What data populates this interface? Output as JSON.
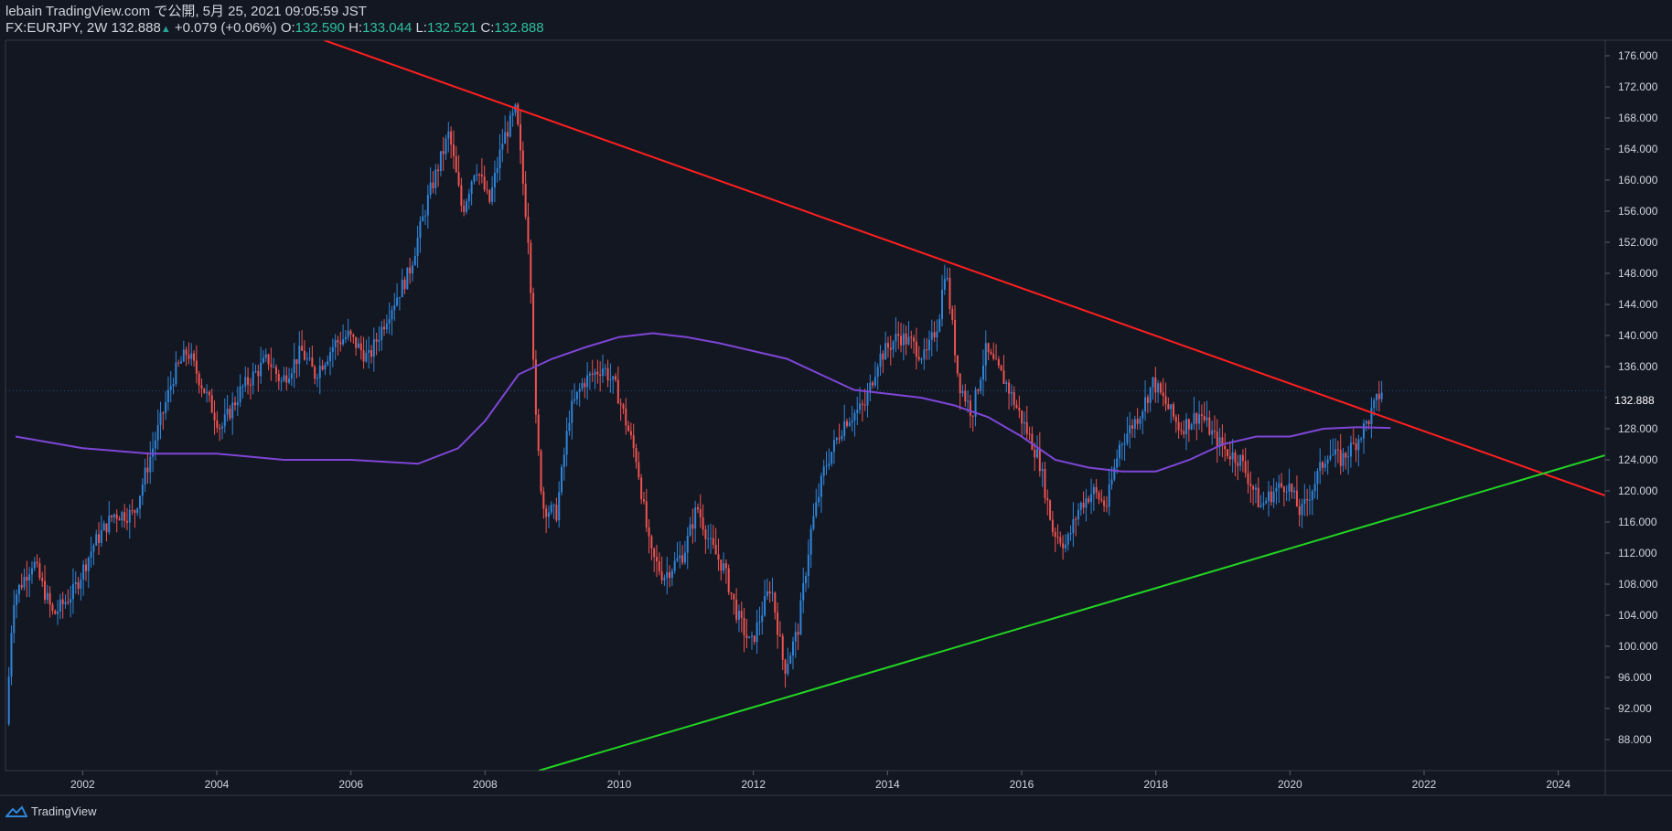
{
  "header": {
    "published": "lebain TradingView.com で公開, 5月 25, 2021 09:05:59 JST",
    "symbol": "FX:EURJPY, 2W",
    "last": "132.888",
    "change_arrow": "▲",
    "change": "+0.079 (+0.06%)",
    "o_label": "O:",
    "o_val": "132.590",
    "h_label": "H:",
    "h_val": "133.044",
    "l_label": "L:",
    "l_val": "132.521",
    "c_label": "C:",
    "c_val": "132.888"
  },
  "footer": {
    "brand": "TradingView",
    "logo_icon": "tradingview-logo-icon"
  },
  "colors": {
    "bg": "#131722",
    "up": "#2f84d8",
    "down": "#ef5350",
    "ma": "#7e46d6",
    "resist": "#ff1f1f",
    "support": "#22d622",
    "axis_text": "#d1d4dc"
  },
  "chart_data": {
    "type": "candlestick",
    "symbol": "FX:EURJPY",
    "interval": "2W",
    "xlim": [
      2000.85,
      2024.7
    ],
    "ylim": [
      84.0,
      178.0
    ],
    "x_ticks": [
      "2002",
      "2004",
      "2006",
      "2008",
      "2010",
      "2012",
      "2014",
      "2016",
      "2018",
      "2020",
      "2022",
      "2024"
    ],
    "y_ticks": [
      "88.000",
      "92.000",
      "96.000",
      "100.000",
      "104.000",
      "108.000",
      "112.000",
      "116.000",
      "120.000",
      "124.000",
      "128.000",
      "132.000",
      "136.000",
      "140.000",
      "144.000",
      "148.000",
      "152.000",
      "156.000",
      "160.000",
      "164.000",
      "168.000",
      "172.000",
      "176.000"
    ],
    "last_price": "132.888",
    "price_path": [
      [
        2000.9,
        90.0
      ],
      [
        2001.0,
        106.0
      ],
      [
        2001.3,
        111.0
      ],
      [
        2001.6,
        104.0
      ],
      [
        2001.9,
        107.0
      ],
      [
        2002.2,
        113.0
      ],
      [
        2002.5,
        117.0
      ],
      [
        2002.8,
        117.0
      ],
      [
        2003.1,
        126.0
      ],
      [
        2003.4,
        135.0
      ],
      [
        2003.6,
        138.0
      ],
      [
        2003.9,
        132.0
      ],
      [
        2004.1,
        128.0
      ],
      [
        2004.4,
        133.0
      ],
      [
        2004.8,
        137.0
      ],
      [
        2005.0,
        134.0
      ],
      [
        2005.3,
        138.0
      ],
      [
        2005.5,
        135.0
      ],
      [
        2005.8,
        139.0
      ],
      [
        2006.0,
        140.0
      ],
      [
        2006.3,
        137.0
      ],
      [
        2006.6,
        143.0
      ],
      [
        2006.9,
        148.0
      ],
      [
        2007.2,
        158.0
      ],
      [
        2007.5,
        166.0
      ],
      [
        2007.7,
        156.0
      ],
      [
        2007.9,
        162.0
      ],
      [
        2008.1,
        157.0
      ],
      [
        2008.3,
        165.0
      ],
      [
        2008.5,
        169.0
      ],
      [
        2008.7,
        151.0
      ],
      [
        2008.8,
        128.0
      ],
      [
        2008.9,
        118.0
      ],
      [
        2009.1,
        117.0
      ],
      [
        2009.3,
        130.0
      ],
      [
        2009.5,
        134.0
      ],
      [
        2009.8,
        136.0
      ],
      [
        2010.0,
        133.0
      ],
      [
        2010.3,
        124.0
      ],
      [
        2010.5,
        112.0
      ],
      [
        2010.7,
        109.0
      ],
      [
        2011.0,
        112.0
      ],
      [
        2011.2,
        118.0
      ],
      [
        2011.4,
        113.0
      ],
      [
        2011.6,
        110.0
      ],
      [
        2011.8,
        104.0
      ],
      [
        2012.0,
        100.0
      ],
      [
        2012.3,
        108.0
      ],
      [
        2012.5,
        97.0
      ],
      [
        2012.7,
        102.0
      ],
      [
        2012.9,
        115.0
      ],
      [
        2013.1,
        123.0
      ],
      [
        2013.4,
        129.0
      ],
      [
        2013.7,
        131.0
      ],
      [
        2013.9,
        137.0
      ],
      [
        2014.2,
        140.0
      ],
      [
        2014.4,
        139.0
      ],
      [
        2014.6,
        137.0
      ],
      [
        2014.8,
        142.0
      ],
      [
        2014.9,
        149.0
      ],
      [
        2015.1,
        134.0
      ],
      [
        2015.3,
        130.0
      ],
      [
        2015.5,
        138.0
      ],
      [
        2015.8,
        134.0
      ],
      [
        2016.0,
        130.0
      ],
      [
        2016.3,
        124.0
      ],
      [
        2016.5,
        115.0
      ],
      [
        2016.7,
        113.0
      ],
      [
        2016.9,
        118.0
      ],
      [
        2017.1,
        120.0
      ],
      [
        2017.3,
        118.0
      ],
      [
        2017.5,
        126.0
      ],
      [
        2017.8,
        130.0
      ],
      [
        2018.0,
        134.0
      ],
      [
        2018.2,
        131.0
      ],
      [
        2018.4,
        128.0
      ],
      [
        2018.7,
        130.0
      ],
      [
        2018.9,
        127.0
      ],
      [
        2019.1,
        125.0
      ],
      [
        2019.3,
        124.0
      ],
      [
        2019.6,
        118.0
      ],
      [
        2019.8,
        120.0
      ],
      [
        2020.0,
        121.0
      ],
      [
        2020.2,
        117.0
      ],
      [
        2020.4,
        121.0
      ],
      [
        2020.6,
        125.0
      ],
      [
        2020.8,
        124.0
      ],
      [
        2021.0,
        126.0
      ],
      [
        2021.2,
        129.0
      ],
      [
        2021.4,
        132.9
      ]
    ],
    "moving_average": [
      [
        2001.0,
        127.0
      ],
      [
        2002.0,
        125.5
      ],
      [
        2003.0,
        124.8
      ],
      [
        2004.0,
        124.8
      ],
      [
        2005.0,
        124.0
      ],
      [
        2006.0,
        124.0
      ],
      [
        2007.0,
        123.5
      ],
      [
        2007.6,
        125.5
      ],
      [
        2008.0,
        129.0
      ],
      [
        2008.5,
        135.0
      ],
      [
        2009.0,
        137.0
      ],
      [
        2009.5,
        138.5
      ],
      [
        2010.0,
        139.8
      ],
      [
        2010.5,
        140.3
      ],
      [
        2011.0,
        139.8
      ],
      [
        2011.5,
        139.0
      ],
      [
        2012.0,
        138.0
      ],
      [
        2012.5,
        137.0
      ],
      [
        2013.0,
        135.0
      ],
      [
        2013.5,
        133.0
      ],
      [
        2014.0,
        132.5
      ],
      [
        2014.5,
        132.0
      ],
      [
        2015.0,
        131.0
      ],
      [
        2015.5,
        129.5
      ],
      [
        2016.0,
        127.0
      ],
      [
        2016.5,
        124.0
      ],
      [
        2017.0,
        123.0
      ],
      [
        2017.5,
        122.5
      ],
      [
        2018.0,
        122.5
      ],
      [
        2018.5,
        124.0
      ],
      [
        2019.0,
        126.0
      ],
      [
        2019.5,
        127.0
      ],
      [
        2020.0,
        127.0
      ],
      [
        2020.5,
        128.0
      ],
      [
        2021.0,
        128.2
      ],
      [
        2021.5,
        128.1
      ]
    ],
    "trendlines": [
      {
        "name": "resistance",
        "color": "#ff1f1f",
        "from": [
          2005.6,
          178.0
        ],
        "to": [
          2024.7,
          119.4
        ]
      },
      {
        "name": "support",
        "color": "#22d622",
        "from": [
          2008.8,
          84.0
        ],
        "to": [
          2024.7,
          124.6
        ]
      }
    ]
  }
}
